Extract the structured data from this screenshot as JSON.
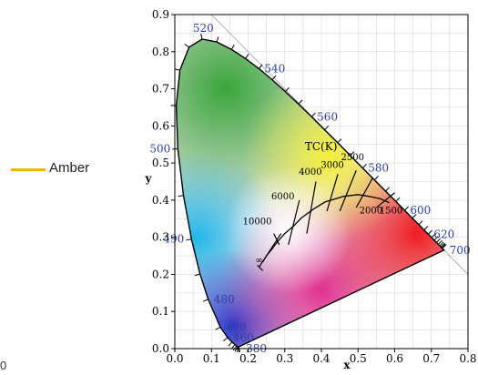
{
  "legend": {
    "label": "Amber",
    "color": "#f5b400"
  },
  "stray_text": "0",
  "chart_data": {
    "type": "chromaticity-diagram",
    "xlabel": "x",
    "ylabel": "y",
    "xlim": [
      0.0,
      0.8
    ],
    "ylim": [
      0.0,
      0.9
    ],
    "xticks": [
      "0.0",
      "0.1",
      "0.2",
      "0.3",
      "0.4",
      "0.5",
      "0.6",
      "0.7",
      "0.8"
    ],
    "yticks": [
      "0.0",
      "0.1",
      "0.2",
      "0.3",
      "0.4",
      "0.5",
      "0.6",
      "0.7",
      "0.8",
      "0.9"
    ],
    "grid": true,
    "spectral_locus": [
      [
        0.1741,
        0.005
      ],
      [
        0.174,
        0.005
      ],
      [
        0.1733,
        0.0048
      ],
      [
        0.1726,
        0.0048
      ],
      [
        0.1714,
        0.0051
      ],
      [
        0.1689,
        0.0069
      ],
      [
        0.1644,
        0.0109
      ],
      [
        0.1566,
        0.0177
      ],
      [
        0.144,
        0.0297
      ],
      [
        0.1241,
        0.0578
      ],
      [
        0.0913,
        0.1327
      ],
      [
        0.0687,
        0.2007
      ],
      [
        0.0454,
        0.295
      ],
      [
        0.0235,
        0.4127
      ],
      [
        0.0082,
        0.5384
      ],
      [
        0.0039,
        0.6548
      ],
      [
        0.0139,
        0.7502
      ],
      [
        0.0389,
        0.812
      ],
      [
        0.0743,
        0.8338
      ],
      [
        0.1142,
        0.8262
      ],
      [
        0.1547,
        0.8059
      ],
      [
        0.1929,
        0.7816
      ],
      [
        0.2296,
        0.7543
      ],
      [
        0.2658,
        0.7243
      ],
      [
        0.3016,
        0.6923
      ],
      [
        0.3373,
        0.6589
      ],
      [
        0.3731,
        0.6245
      ],
      [
        0.4087,
        0.5896
      ],
      [
        0.4441,
        0.5547
      ],
      [
        0.4788,
        0.5202
      ],
      [
        0.5125,
        0.4866
      ],
      [
        0.5448,
        0.4544
      ],
      [
        0.5752,
        0.4242
      ],
      [
        0.6029,
        0.3965
      ],
      [
        0.627,
        0.3725
      ],
      [
        0.6482,
        0.3514
      ],
      [
        0.6658,
        0.334
      ],
      [
        0.6801,
        0.3197
      ],
      [
        0.6915,
        0.3083
      ],
      [
        0.7006,
        0.2993
      ],
      [
        0.7079,
        0.292
      ],
      [
        0.714,
        0.2859
      ],
      [
        0.719,
        0.2809
      ],
      [
        0.723,
        0.277
      ],
      [
        0.726,
        0.274
      ],
      [
        0.7283,
        0.2717
      ],
      [
        0.73,
        0.27
      ],
      [
        0.7347,
        0.2653
      ]
    ],
    "wavelength_labels": [
      {
        "text": "380",
        "x": 0.1741,
        "y": 0.005
      },
      {
        "text": "460",
        "x": 0.144,
        "y": 0.0297
      },
      {
        "text": "470",
        "x": 0.1241,
        "y": 0.0578
      },
      {
        "text": "480",
        "x": 0.0913,
        "y": 0.1327
      },
      {
        "text": "490",
        "x": 0.0454,
        "y": 0.295
      },
      {
        "text": "500",
        "x": 0.0082,
        "y": 0.5384
      },
      {
        "text": "520",
        "x": 0.0743,
        "y": 0.8338
      },
      {
        "text": "540",
        "x": 0.2296,
        "y": 0.7543
      },
      {
        "text": "560",
        "x": 0.3731,
        "y": 0.6245
      },
      {
        "text": "580",
        "x": 0.5125,
        "y": 0.4866
      },
      {
        "text": "600",
        "x": 0.627,
        "y": 0.3725
      },
      {
        "text": "620",
        "x": 0.6915,
        "y": 0.3083
      },
      {
        "text": "700",
        "x": 0.7347,
        "y": 0.2653
      }
    ],
    "planckian_locus_title": "TC(K)",
    "planckian_locus": [
      [
        0.24,
        0.234
      ],
      [
        0.252,
        0.252
      ],
      [
        0.265,
        0.268
      ],
      [
        0.28,
        0.288
      ],
      [
        0.3,
        0.31
      ],
      [
        0.323,
        0.329
      ],
      [
        0.345,
        0.352
      ],
      [
        0.38,
        0.377
      ],
      [
        0.41,
        0.395
      ],
      [
        0.44,
        0.404
      ],
      [
        0.46,
        0.41
      ],
      [
        0.5,
        0.415
      ],
      [
        0.53,
        0.41
      ],
      [
        0.56,
        0.404
      ],
      [
        0.585,
        0.393
      ]
    ],
    "isotherm_labels": [
      {
        "text": "∞",
        "x": 0.23,
        "y": 0.23
      },
      {
        "text": "10000",
        "x": 0.225,
        "y": 0.335
      },
      {
        "text": "6000",
        "x": 0.295,
        "y": 0.402
      },
      {
        "text": "4000",
        "x": 0.37,
        "y": 0.468
      },
      {
        "text": "3000",
        "x": 0.43,
        "y": 0.487
      },
      {
        "text": "2500",
        "x": 0.485,
        "y": 0.508
      },
      {
        "text": "2000",
        "x": 0.535,
        "y": 0.364
      },
      {
        "text": "1500",
        "x": 0.59,
        "y": 0.364
      }
    ],
    "isotherms": [
      {
        "x1": 0.23,
        "y1": 0.22,
        "x2": 0.29,
        "y2": 0.31
      },
      {
        "x1": 0.285,
        "y1": 0.28,
        "x2": 0.27,
        "y2": 0.31
      },
      {
        "x1": 0.31,
        "y1": 0.28,
        "x2": 0.34,
        "y2": 0.4
      },
      {
        "x1": 0.36,
        "y1": 0.31,
        "x2": 0.385,
        "y2": 0.45
      },
      {
        "x1": 0.415,
        "y1": 0.37,
        "x2": 0.445,
        "y2": 0.47
      },
      {
        "x1": 0.45,
        "y1": 0.37,
        "x2": 0.495,
        "y2": 0.48
      },
      {
        "x1": 0.495,
        "y1": 0.38,
        "x2": 0.54,
        "y2": 0.46
      },
      {
        "x1": 0.55,
        "y1": 0.38,
        "x2": 0.6,
        "y2": 0.42
      }
    ]
  }
}
